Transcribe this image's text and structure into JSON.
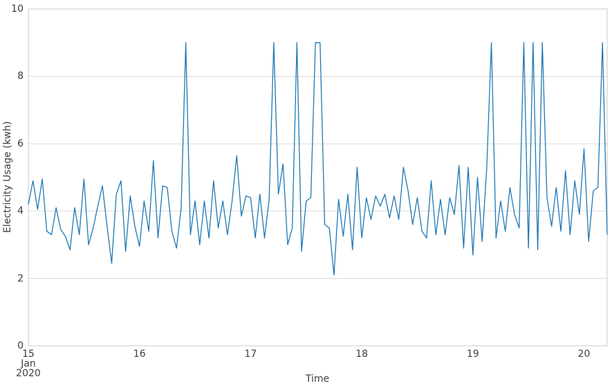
{
  "chart_data": {
    "type": "line",
    "title": "",
    "xlabel": "Time",
    "ylabel": "Electricity Usage (kwh)",
    "ylim": [
      0,
      10
    ],
    "yticks": [
      0,
      2,
      4,
      6,
      8,
      10
    ],
    "xlim_hours": [
      0,
      125
    ],
    "x_ticks": [
      {
        "pos_hours": 0,
        "lines": [
          "15",
          "Jan",
          "2020"
        ]
      },
      {
        "pos_hours": 24,
        "lines": [
          "16"
        ]
      },
      {
        "pos_hours": 48,
        "lines": [
          "17"
        ]
      },
      {
        "pos_hours": 72,
        "lines": [
          "18"
        ]
      },
      {
        "pos_hours": 96,
        "lines": [
          "19"
        ]
      },
      {
        "pos_hours": 120,
        "lines": [
          "20"
        ]
      }
    ],
    "grid": "horizontal-only",
    "legend": "none",
    "colors": {
      "line": "#1f77b4",
      "grid": "#d9d9d9",
      "spine": "#c9c9c9",
      "text": "#3d3d3d"
    },
    "series": [
      {
        "name": "Electricity Usage (kwh)",
        "start": "2020-01-15 00:00",
        "step_hours": 1,
        "values": [
          4.2,
          4.9,
          4.05,
          4.95,
          3.4,
          3.3,
          4.1,
          3.45,
          3.25,
          2.85,
          4.1,
          3.3,
          4.95,
          3.0,
          3.5,
          4.15,
          4.75,
          3.55,
          2.45,
          4.5,
          4.9,
          2.8,
          4.45,
          3.55,
          2.95,
          4.3,
          3.4,
          5.5,
          3.2,
          4.75,
          4.7,
          3.4,
          2.9,
          4.1,
          9.0,
          3.3,
          4.3,
          3.0,
          4.3,
          3.2,
          4.9,
          3.5,
          4.3,
          3.3,
          4.3,
          5.65,
          3.85,
          4.45,
          4.4,
          3.2,
          4.5,
          3.2,
          4.35,
          9.0,
          4.5,
          5.4,
          3.0,
          3.5,
          9.0,
          2.8,
          4.3,
          4.4,
          9.0,
          9.0,
          3.6,
          3.5,
          2.1,
          4.35,
          3.25,
          4.5,
          2.85,
          5.3,
          3.2,
          4.4,
          3.75,
          4.45,
          4.15,
          4.5,
          3.8,
          4.45,
          3.75,
          5.3,
          4.6,
          3.6,
          4.4,
          3.4,
          3.2,
          4.9,
          3.3,
          4.35,
          3.3,
          4.4,
          3.9,
          5.35,
          2.9,
          5.3,
          2.7,
          5.0,
          3.1,
          5.3,
          9.0,
          3.2,
          4.3,
          3.4,
          4.7,
          3.9,
          3.5,
          9.0,
          2.9,
          9.0,
          2.85,
          9.0,
          4.4,
          3.55,
          4.7,
          3.4,
          5.2,
          3.3,
          4.9,
          3.9,
          5.85,
          3.1,
          4.6,
          4.7,
          9.0,
          3.3
        ]
      }
    ]
  }
}
